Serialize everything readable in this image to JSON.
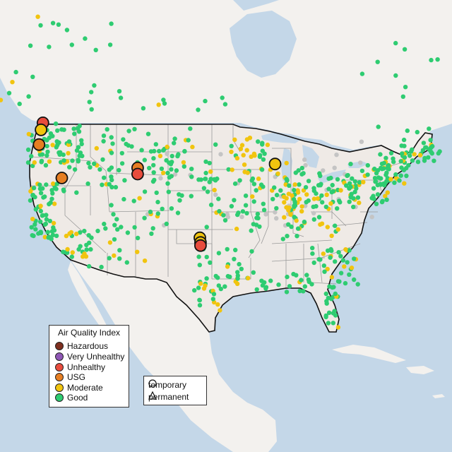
{
  "colors": {
    "land_us": "#efeae6",
    "land_other": "#f3f1ee",
    "water": "#c4d7e8",
    "us_border": "#111111",
    "state_border": "#9a9a9a",
    "monitor_grey": "#c4c4c4"
  },
  "legend_aqi": {
    "title": "Air Quality Index",
    "items": [
      {
        "label": "Hazardous",
        "color": "#7e2f1f"
      },
      {
        "label": "Very Unhealthy",
        "color": "#8f57b5"
      },
      {
        "label": "Unhealthy",
        "color": "#e84c3d"
      },
      {
        "label": "USG",
        "color": "#e67e22"
      },
      {
        "label": "Moderate",
        "color": "#f1c40f"
      },
      {
        "label": "Good",
        "color": "#2ecc71"
      }
    ]
  },
  "legend_monitor": {
    "items": [
      {
        "label": "temporary",
        "marker": "circle-icon"
      },
      {
        "label": "permanent",
        "marker": "triangle-icon"
      }
    ]
  },
  "highlight_monitors": [
    {
      "lon": -123.8,
      "lat": 49.1,
      "aqi": "Unhealthy",
      "type": "temporary"
    },
    {
      "lon": -124.1,
      "lat": 48.2,
      "aqi": "Moderate",
      "type": "temporary"
    },
    {
      "lon": -124.4,
      "lat": 46.3,
      "aqi": "USG",
      "type": "temporary"
    },
    {
      "lon": -120.9,
      "lat": 42.0,
      "aqi": "USG",
      "type": "temporary"
    },
    {
      "lon": -109.2,
      "lat": 43.3,
      "aqi": "USG",
      "type": "temporary"
    },
    {
      "lon": -109.2,
      "lat": 42.5,
      "aqi": "Unhealthy",
      "type": "temporary"
    },
    {
      "lon": -88.0,
      "lat": 43.8,
      "aqi": "Moderate",
      "type": "temporary"
    },
    {
      "lon": -99.6,
      "lat": 34.3,
      "aqi": "Moderate",
      "type": "temporary"
    },
    {
      "lon": -99.5,
      "lat": 33.7,
      "aqi": "Moderate",
      "type": "temporary"
    },
    {
      "lon": -99.5,
      "lat": 33.3,
      "aqi": "Unhealthy",
      "type": "temporary"
    }
  ]
}
